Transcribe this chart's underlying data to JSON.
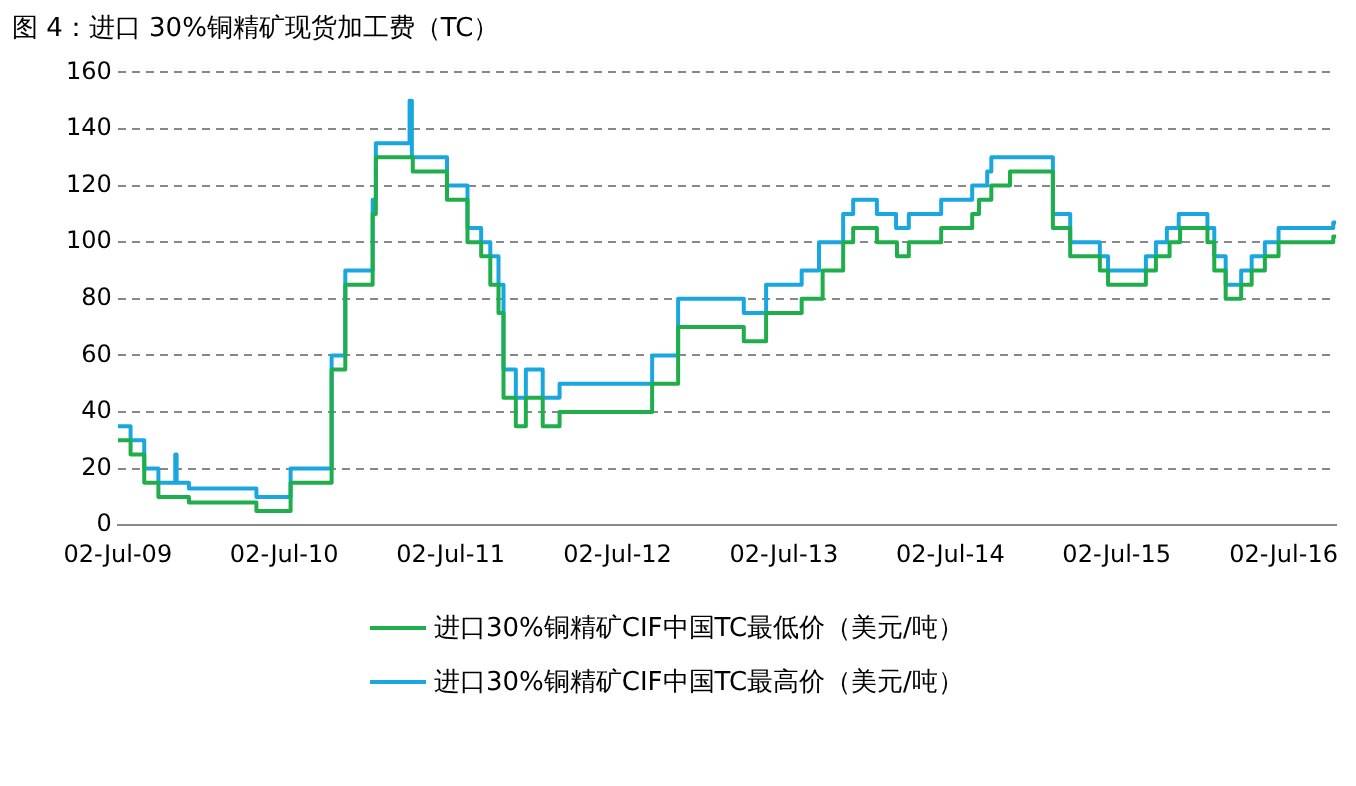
{
  "chart_data": {
    "type": "step",
    "title": "图 4：进口 30%铜精矿现货加工费（TC）",
    "xlim": [
      "2009-07-02",
      "2016-10-25"
    ],
    "xticks": [
      {
        "value": "2009-07-02",
        "label": "02-Jul-09"
      },
      {
        "value": "2010-07-02",
        "label": "02-Jul-10"
      },
      {
        "value": "2011-07-02",
        "label": "02-Jul-11"
      },
      {
        "value": "2012-07-02",
        "label": "02-Jul-12"
      },
      {
        "value": "2013-07-02",
        "label": "02-Jul-13"
      },
      {
        "value": "2014-07-02",
        "label": "02-Jul-14"
      },
      {
        "value": "2015-07-02",
        "label": "02-Jul-15"
      },
      {
        "value": "2016-07-02",
        "label": "02-Jul-16"
      }
    ],
    "ylim": [
      0,
      160
    ],
    "yticks": [
      0,
      20,
      40,
      60,
      80,
      100,
      120,
      140,
      160
    ],
    "grid": "y",
    "line_style": "solid",
    "marker": "none",
    "legend": "bottom",
    "series": [
      {
        "name": "进口30%铜精矿CIF中国TC最低价（美元/吨）",
        "color": "#1fae4b",
        "x": [
          "2009-07-02",
          "2009-07-30",
          "2009-08-29",
          "2009-09-29",
          "2009-12-05",
          "2010-05-02",
          "2010-07-16",
          "2010-10-14",
          "2010-11-13",
          "2011-01-12",
          "2011-01-19",
          "2011-04-10",
          "2011-06-24",
          "2011-08-08",
          "2011-09-07",
          "2011-09-27",
          "2011-10-15",
          "2011-10-26",
          "2011-11-22",
          "2011-12-14",
          "2012-01-20",
          "2012-02-26",
          "2012-09-16",
          "2012-11-12",
          "2013-04-05",
          "2013-05-24",
          "2013-08-10",
          "2013-09-25",
          "2013-11-09",
          "2013-12-01",
          "2014-01-22",
          "2014-03-07",
          "2014-04-02",
          "2014-06-12",
          "2014-08-19",
          "2014-09-03",
          "2014-09-30",
          "2014-11-10",
          "2015-02-12",
          "2015-03-22",
          "2015-05-26",
          "2015-06-13",
          "2015-09-04",
          "2015-09-26",
          "2015-10-26",
          "2015-11-18",
          "2016-01-17",
          "2016-02-01",
          "2016-02-26",
          "2016-03-31",
          "2016-04-23",
          "2016-05-22",
          "2016-06-21",
          "2016-10-19",
          "2016-10-25"
        ],
        "values": [
          30,
          25,
          15,
          10,
          8,
          5,
          15,
          55,
          85,
          110,
          130,
          125,
          115,
          100,
          95,
          85,
          75,
          45,
          35,
          45,
          35,
          40,
          50,
          70,
          65,
          75,
          80,
          90,
          100,
          105,
          100,
          95,
          100,
          105,
          110,
          115,
          120,
          125,
          105,
          95,
          90,
          85,
          90,
          95,
          100,
          105,
          100,
          90,
          80,
          85,
          90,
          95,
          100,
          102,
          102
        ]
      },
      {
        "name": "进口30%铜精矿CIF中国TC最高价（美元/吨）",
        "color": "#1aa7e0",
        "x": [
          "2009-07-02",
          "2009-07-30",
          "2009-08-29",
          "2009-09-29",
          "2009-11-05",
          "2009-11-08",
          "2009-12-05",
          "2010-05-02",
          "2010-07-16",
          "2010-10-14",
          "2010-11-13",
          "2011-01-12",
          "2011-01-19",
          "2011-04-03",
          "2011-04-08",
          "2011-06-24",
          "2011-08-08",
          "2011-09-07",
          "2011-09-27",
          "2011-10-15",
          "2011-10-26",
          "2011-11-22",
          "2011-12-14",
          "2012-01-20",
          "2012-02-26",
          "2012-09-16",
          "2012-11-12",
          "2013-04-05",
          "2013-05-24",
          "2013-08-10",
          "2013-09-17",
          "2013-11-09",
          "2013-12-01",
          "2014-01-22",
          "2014-03-05",
          "2014-04-02",
          "2014-06-12",
          "2014-08-19",
          "2014-09-21",
          "2014-09-30",
          "2015-02-12",
          "2015-03-22",
          "2015-05-26",
          "2015-06-13",
          "2015-09-04",
          "2015-09-26",
          "2015-10-20",
          "2015-11-15",
          "2016-01-17",
          "2016-02-01",
          "2016-02-26",
          "2016-03-31",
          "2016-04-23",
          "2016-05-22",
          "2016-06-21",
          "2016-10-19",
          "2016-10-25"
        ],
        "values": [
          35,
          30,
          20,
          15,
          25,
          15,
          13,
          10,
          20,
          60,
          90,
          115,
          135,
          150,
          130,
          120,
          105,
          100,
          95,
          85,
          55,
          45,
          55,
          45,
          50,
          60,
          80,
          75,
          85,
          90,
          100,
          110,
          115,
          110,
          105,
          110,
          115,
          120,
          125,
          130,
          110,
          100,
          95,
          90,
          95,
          100,
          105,
          110,
          105,
          95,
          85,
          90,
          95,
          100,
          105,
          107,
          107
        ]
      }
    ]
  }
}
